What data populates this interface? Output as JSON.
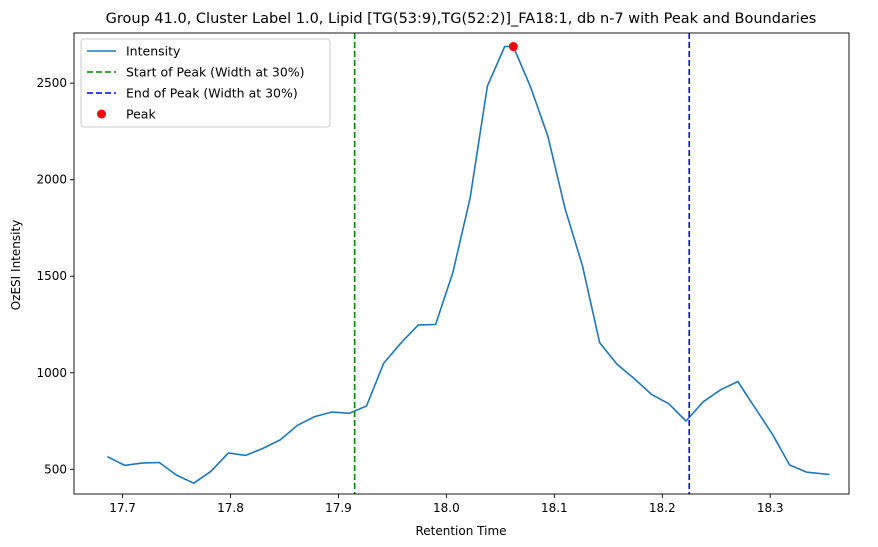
{
  "chart_data": {
    "type": "line",
    "title": "Group 41.0, Cluster Label 1.0, Lipid [TG(53:9),TG(52:2)]_FA18:1, db n-7 with Peak and Boundaries",
    "xlabel": "Retention Time",
    "ylabel": "OzESI Intensity",
    "xlim": [
      17.655,
      18.373
    ],
    "ylim": [
      372,
      2760
    ],
    "xticks": [
      17.7,
      17.8,
      17.9,
      18.0,
      18.1,
      18.2,
      18.3
    ],
    "xtick_labels": [
      "17.7",
      "17.8",
      "17.9",
      "18.0",
      "18.1",
      "18.2",
      "18.3"
    ],
    "yticks": [
      500,
      1000,
      1500,
      2000,
      2500
    ],
    "ytick_labels": [
      "500",
      "1000",
      "1500",
      "2000",
      "2500"
    ],
    "grid": false,
    "legend_position": "top-left",
    "series": [
      {
        "name": "Intensity",
        "color": "#1f77b4",
        "x": [
          17.686,
          17.702,
          17.718,
          17.734,
          17.75,
          17.766,
          17.782,
          17.798,
          17.814,
          17.83,
          17.846,
          17.862,
          17.878,
          17.894,
          17.91,
          17.926,
          17.942,
          17.958,
          17.974,
          17.99,
          18.006,
          18.022,
          18.038,
          18.054,
          18.062,
          18.078,
          18.094,
          18.11,
          18.126,
          18.142,
          18.158,
          18.174,
          18.19,
          18.206,
          18.222,
          18.238,
          18.254,
          18.27,
          18.286,
          18.302,
          18.318,
          18.334,
          18.355
        ],
        "values": [
          565,
          520,
          532,
          535,
          470,
          428,
          490,
          585,
          572,
          608,
          652,
          728,
          773,
          797,
          790,
          828,
          1050,
          1155,
          1248,
          1250,
          1520,
          1905,
          2485,
          2690,
          2690,
          2480,
          2225,
          1850,
          1555,
          1155,
          1045,
          970,
          888,
          840,
          750,
          850,
          912,
          955,
          818,
          682,
          522,
          485,
          473
        ]
      }
    ],
    "vlines": [
      {
        "name": "Start of Peak (Width at 30%)",
        "x": 17.915,
        "color": "#008000",
        "style": "dashed"
      },
      {
        "name": "End of Peak (Width at 30%)",
        "x": 18.225,
        "color": "#0000ff",
        "style": "dashed"
      }
    ],
    "peak": {
      "name": "Peak",
      "x": 18.062,
      "y": 2690,
      "color": "#ff0000"
    }
  }
}
